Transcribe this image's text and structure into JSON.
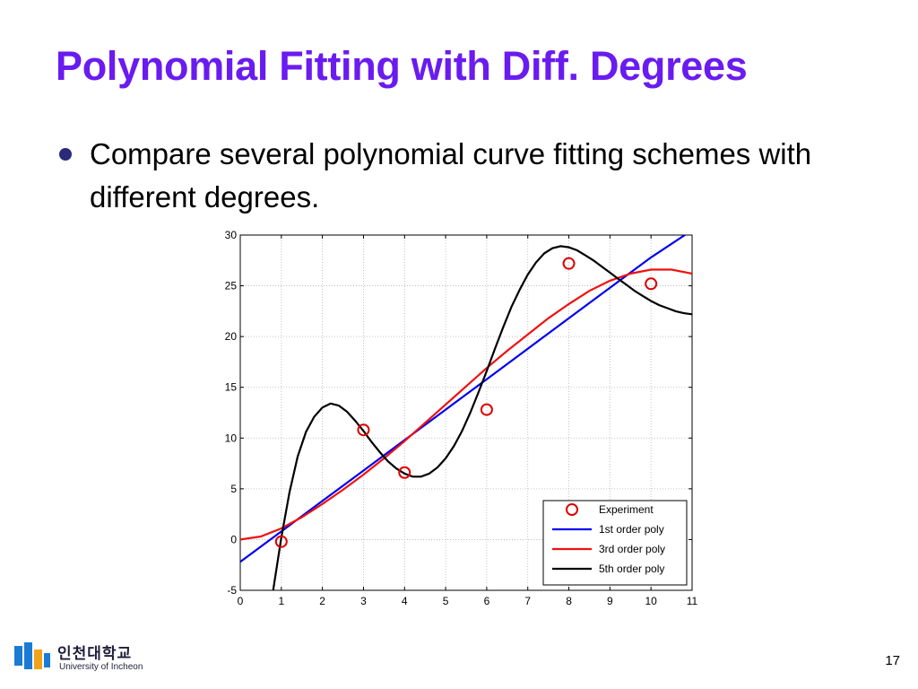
{
  "slide": {
    "title": "Polynomial Fitting with Diff. Degrees",
    "bullet": "Compare several polynomial curve fitting schemes with different degrees.",
    "page_number": "17"
  },
  "logo": {
    "korean_name": "인천대학교",
    "english_name": "University of Incheon"
  },
  "colors": {
    "title": "#6a1bf0",
    "experiment": "#dd0000",
    "poly1": "#0000ee",
    "poly3": "#ee1111",
    "poly5": "#000000"
  },
  "chart_data": {
    "type": "line",
    "title": "",
    "xlabel": "",
    "ylabel": "",
    "xlim": [
      0,
      11
    ],
    "ylim": [
      -5,
      30
    ],
    "xticks": [
      0,
      1,
      2,
      3,
      4,
      5,
      6,
      7,
      8,
      9,
      10,
      11
    ],
    "yticks": [
      -5,
      0,
      5,
      10,
      15,
      20,
      25,
      30
    ],
    "grid": true,
    "legend_position": "bottom-right",
    "series": [
      {
        "name": "Experiment",
        "kind": "markers",
        "marker": "circle",
        "x": [
          1,
          3,
          4,
          6,
          8,
          10
        ],
        "y": [
          -0.2,
          10.8,
          6.6,
          12.8,
          27.2,
          25.2
        ]
      },
      {
        "name": "1st order poly",
        "kind": "line",
        "x": [
          0,
          1,
          2,
          3,
          4,
          5,
          6,
          7,
          8,
          9,
          10,
          10.9
        ],
        "y": [
          -2.2,
          0.8,
          3.8,
          6.8,
          9.8,
          12.8,
          15.8,
          18.8,
          21.8,
          24.8,
          27.8,
          30.2
        ]
      },
      {
        "name": "3rd order poly",
        "kind": "line",
        "x": [
          0,
          0.5,
          1,
          1.5,
          2,
          2.5,
          3,
          3.5,
          4,
          4.5,
          5,
          5.5,
          6,
          6.5,
          7,
          7.5,
          8,
          8.5,
          9,
          9.5,
          10,
          10.5,
          11
        ],
        "y": [
          0,
          0.3,
          1.1,
          2.2,
          3.5,
          4.9,
          6.4,
          8.0,
          9.7,
          11.5,
          13.3,
          15.1,
          16.9,
          18.6,
          20.2,
          21.8,
          23.2,
          24.5,
          25.5,
          26.2,
          26.6,
          26.6,
          26.2
        ]
      },
      {
        "name": "5th order poly",
        "kind": "line",
        "x": [
          0.8,
          1.0,
          1.2,
          1.4,
          1.6,
          1.8,
          2.0,
          2.2,
          2.4,
          2.6,
          2.8,
          3.0,
          3.2,
          3.4,
          3.6,
          3.8,
          4.0,
          4.2,
          4.4,
          4.6,
          4.8,
          5.0,
          5.2,
          5.4,
          5.6,
          5.8,
          6.0,
          6.2,
          6.4,
          6.6,
          6.8,
          7.0,
          7.2,
          7.4,
          7.6,
          7.8,
          8.0,
          8.2,
          8.4,
          8.6,
          8.8,
          9.0,
          9.2,
          9.4,
          9.6,
          9.8,
          10.0,
          10.2,
          10.4,
          10.6,
          10.8,
          11.0
        ],
        "y": [
          -5.0,
          0.2,
          4.7,
          8.2,
          10.6,
          12.1,
          13.0,
          13.4,
          13.2,
          12.6,
          11.7,
          10.7,
          9.6,
          8.6,
          7.7,
          7.0,
          6.5,
          6.2,
          6.2,
          6.5,
          7.1,
          8.0,
          9.2,
          10.7,
          12.5,
          14.5,
          16.6,
          18.8,
          20.9,
          22.9,
          24.6,
          26.1,
          27.3,
          28.2,
          28.7,
          28.9,
          28.8,
          28.5,
          28.0,
          27.5,
          26.9,
          26.3,
          25.7,
          25.1,
          24.5,
          24.0,
          23.5,
          23.1,
          22.8,
          22.5,
          22.3,
          22.2
        ]
      }
    ]
  }
}
